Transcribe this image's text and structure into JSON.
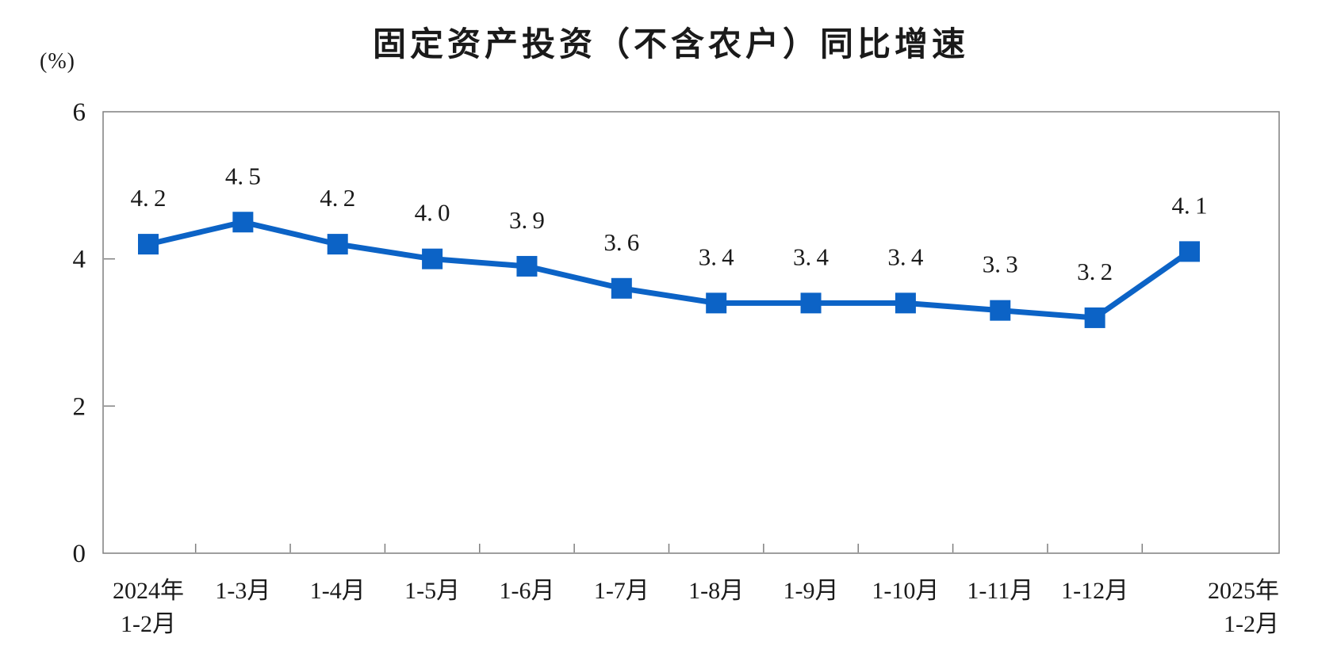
{
  "chart_data": {
    "type": "line",
    "title": "固定资产投资（不含农户）同比增速",
    "unit_label": "(%)",
    "series": [
      {
        "name": "固定资产投资（不含农户）同比增速",
        "values": [
          4.2,
          4.5,
          4.2,
          4.0,
          3.9,
          3.6,
          3.4,
          3.4,
          3.4,
          3.3,
          3.2,
          4.1
        ]
      }
    ],
    "categories": [
      "2024年\n1-2月",
      "1-3月",
      "1-4月",
      "1-5月",
      "1-6月",
      "1-7月",
      "1-8月",
      "1-9月",
      "1-10月",
      "1-11月",
      "1-12月",
      "2025年\n1-2月"
    ],
    "xlabel": "",
    "ylabel": "(%)",
    "ylim": [
      0,
      6
    ],
    "yticks": [
      0,
      2,
      4,
      6
    ],
    "grid": false,
    "legend": "none",
    "data_labels": true,
    "marker": "square",
    "line_color": "#0C63C6",
    "axis_color": "#7F7F7F",
    "text_color": "#1A1A1A"
  }
}
